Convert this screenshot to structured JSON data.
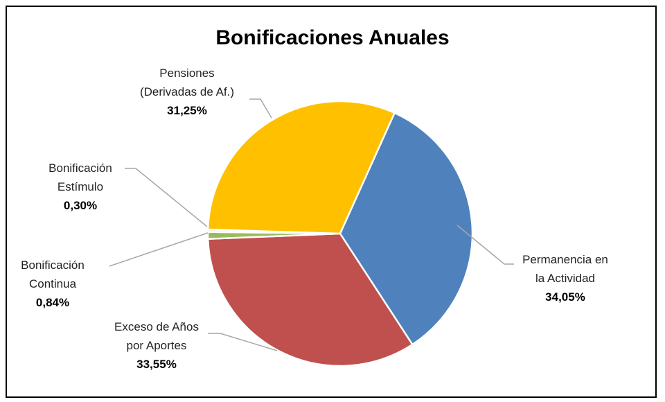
{
  "chart_data": {
    "type": "pie",
    "title": "Bonificaciones Anuales",
    "categories": [
      "Permanencia en la Actividad",
      "Exceso de Años por Aportes",
      "Bonificación Continua",
      "Bonificación Estímulo",
      "Pensiones (Derivadas de Af.)"
    ],
    "values": [
      34.05,
      33.55,
      0.84,
      0.3,
      31.25
    ],
    "value_labels": [
      "34,05%",
      "33,55%",
      "0,84%",
      "0,30%",
      "31,25%"
    ],
    "colors": [
      "#4f81bd",
      "#c0504d",
      "#9bbb59",
      "#e6e6e6",
      "#ffc000"
    ]
  }
}
